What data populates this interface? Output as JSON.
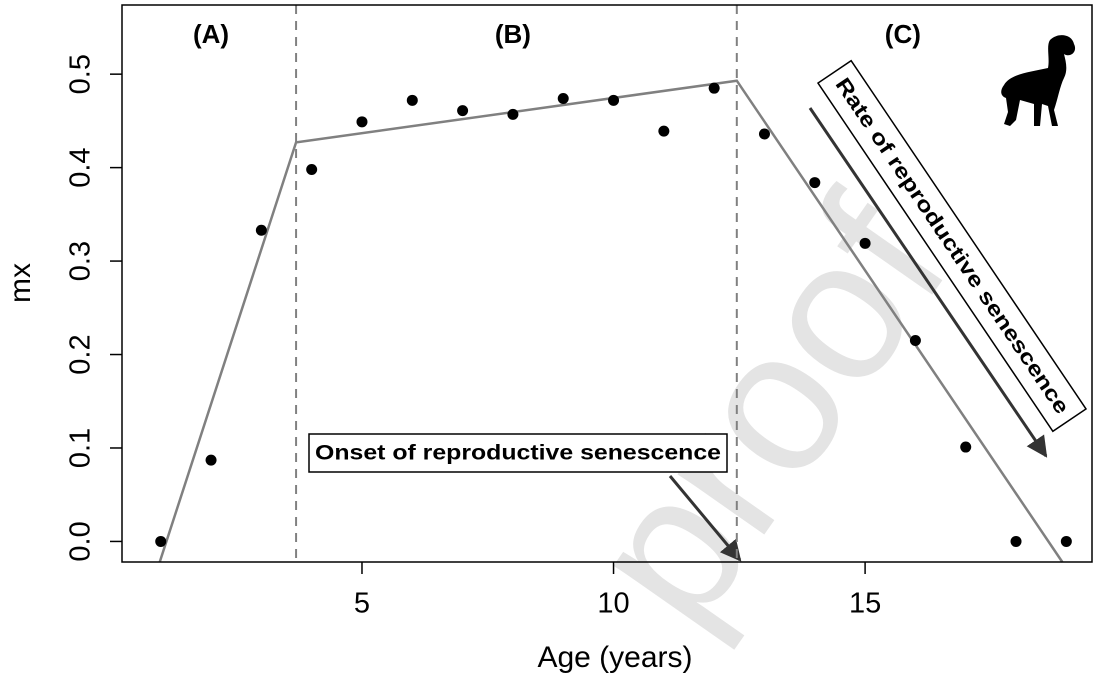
{
  "chart_data": {
    "type": "scatter",
    "x_label": "Age (years)",
    "y_label": "mx",
    "xlim": [
      0.23,
      19.51
    ],
    "ylim": [
      -0.022,
      0.574
    ],
    "xticks": [
      5,
      10,
      15
    ],
    "yticks": [
      {
        "value": 0,
        "label": "0.0"
      },
      0.1,
      0.2,
      0.3,
      0.4,
      0.5
    ],
    "points": {
      "color": "#000000",
      "x": [
        1,
        2,
        3,
        4,
        5,
        6,
        7,
        8,
        9,
        10,
        11,
        12,
        13,
        14,
        15,
        16,
        17,
        18,
        19
      ],
      "values": [
        0,
        0.087,
        0.333,
        0.398,
        0.449,
        0.472,
        0.461,
        0.457,
        0.474,
        0.472,
        0.439,
        0.485,
        0.436,
        0.384,
        0.319,
        0.215,
        0.101,
        0,
        0
      ]
    },
    "fit": {
      "color": "#808080",
      "x": [
        0.98,
        3.69,
        12.45,
        18.92
      ],
      "values": [
        -0.022,
        0.427,
        0.493,
        -0.022
      ]
    },
    "breakpoints": {
      "color": "#808080",
      "x": [
        3.69,
        12.45
      ]
    },
    "phases": [
      {
        "label": "(A)",
        "x": 2.0
      },
      {
        "label": "(B)",
        "x": 8.0
      },
      {
        "label": "(C)",
        "x": 15.75
      }
    ],
    "annotations": {
      "onset": "Onset of reproductive senescence",
      "rate": "Rate of reproductive senescence"
    },
    "watermark": "proof"
  }
}
